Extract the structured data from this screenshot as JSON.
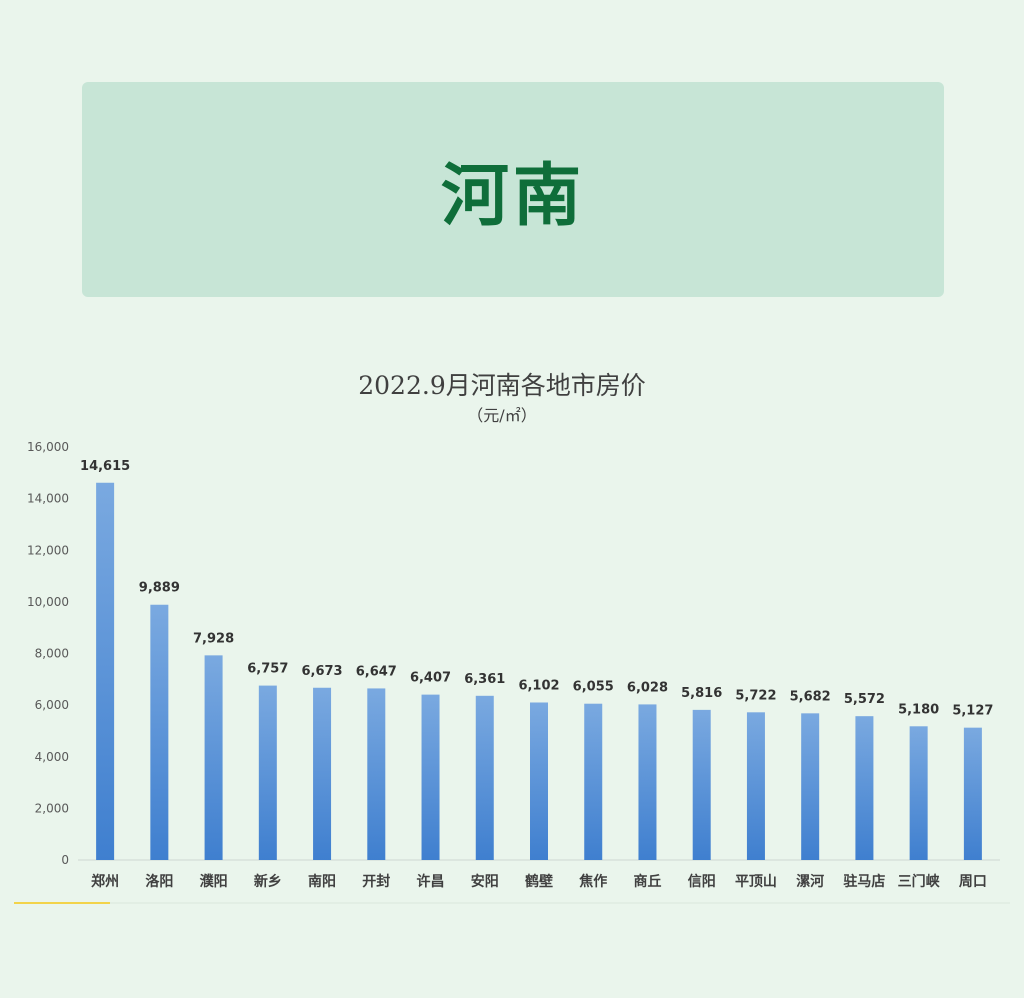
{
  "banner": {
    "title": "河南"
  },
  "chart_data": {
    "type": "bar",
    "title": "2022.9月河南各地市房价",
    "subtitle": "（元/㎡）",
    "categories": [
      "郑州",
      "洛阳",
      "濮阳",
      "新乡",
      "南阳",
      "开封",
      "许昌",
      "安阳",
      "鹤壁",
      "焦作",
      "商丘",
      "信阳",
      "平顶山",
      "漯河",
      "驻马店",
      "三门峡",
      "周口"
    ],
    "values": [
      14615,
      9889,
      7928,
      6757,
      6673,
      6647,
      6407,
      6361,
      6102,
      6055,
      6028,
      5816,
      5722,
      5682,
      5572,
      5180,
      5127
    ],
    "data_labels": [
      "14,615",
      "9,889",
      "7,928",
      "6,757",
      "6,673",
      "6,647",
      "6,407",
      "6,361",
      "6,102",
      "6,055",
      "6,028",
      "5,816",
      "5,722",
      "5,682",
      "5,572",
      "5,180",
      "5,127"
    ],
    "yticks": [
      0,
      2000,
      4000,
      6000,
      8000,
      10000,
      12000,
      14000,
      16000
    ],
    "ytick_labels": [
      "0",
      "2,000",
      "4,000",
      "6,000",
      "8,000",
      "10,000",
      "12,000",
      "14,000",
      "16,000"
    ],
    "ylim": [
      0,
      16000
    ],
    "grid": false,
    "legend": "none",
    "colors": {
      "bar_top": "#7aa9e0",
      "bar_bottom": "#3f7fcf",
      "axis": "#cfd8d2",
      "accent_line": "#f2d34a"
    }
  }
}
